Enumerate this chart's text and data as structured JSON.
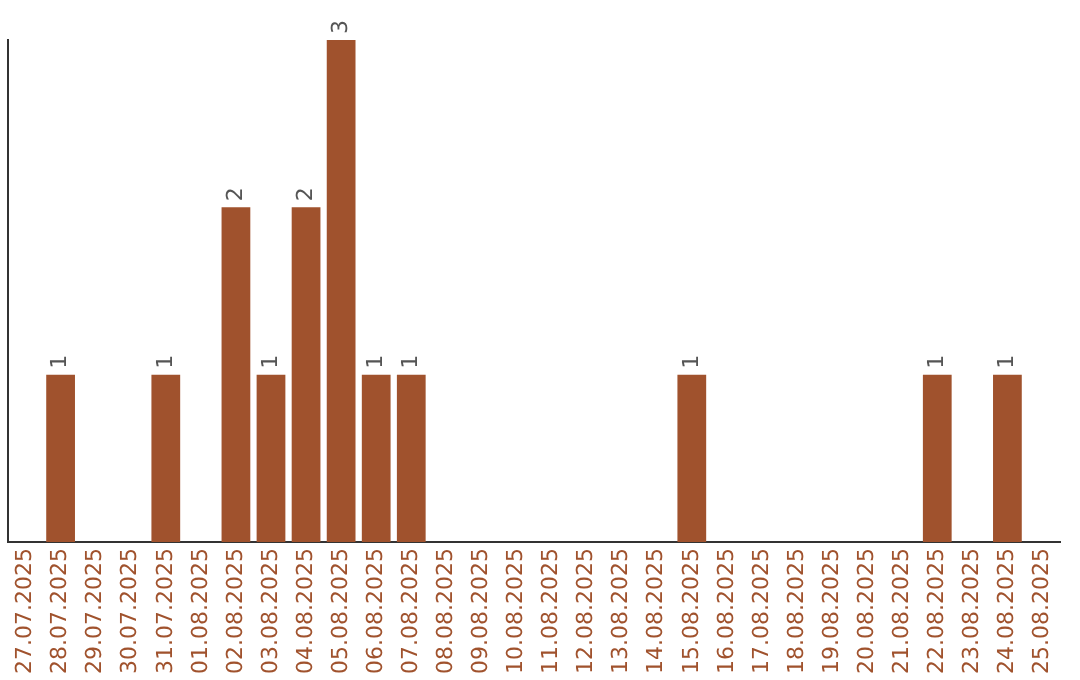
{
  "chart_data": {
    "type": "bar",
    "categories": [
      "27.07.2025",
      "28.07.2025",
      "29.07.2025",
      "30.07.2025",
      "31.07.2025",
      "01.08.2025",
      "02.08.2025",
      "03.08.2025",
      "04.08.2025",
      "05.08.2025",
      "06.08.2025",
      "07.08.2025",
      "08.08.2025",
      "09.08.2025",
      "10.08.2025",
      "11.08.2025",
      "12.08.2025",
      "13.08.2025",
      "14.08.2025",
      "15.08.2025",
      "16.08.2025",
      "17.08.2025",
      "18.08.2025",
      "19.08.2025",
      "20.08.2025",
      "21.08.2025",
      "22.08.2025",
      "23.08.2025",
      "24.08.2025",
      "25.08.2025"
    ],
    "values": [
      0,
      1,
      0,
      0,
      1,
      0,
      2,
      1,
      2,
      3,
      1,
      1,
      0,
      0,
      0,
      0,
      0,
      0,
      0,
      1,
      0,
      0,
      0,
      0,
      0,
      0,
      1,
      0,
      1,
      0
    ],
    "value_labels": [
      null,
      "1",
      null,
      null,
      "1",
      null,
      "2",
      "1",
      "2",
      "3",
      "1",
      "1",
      null,
      null,
      null,
      null,
      null,
      null,
      null,
      "1",
      null,
      null,
      null,
      null,
      null,
      null,
      "1",
      null,
      "1",
      null
    ],
    "color": "#a0522d",
    "tick_labels": "x",
    "grid": false,
    "legend": false
  }
}
